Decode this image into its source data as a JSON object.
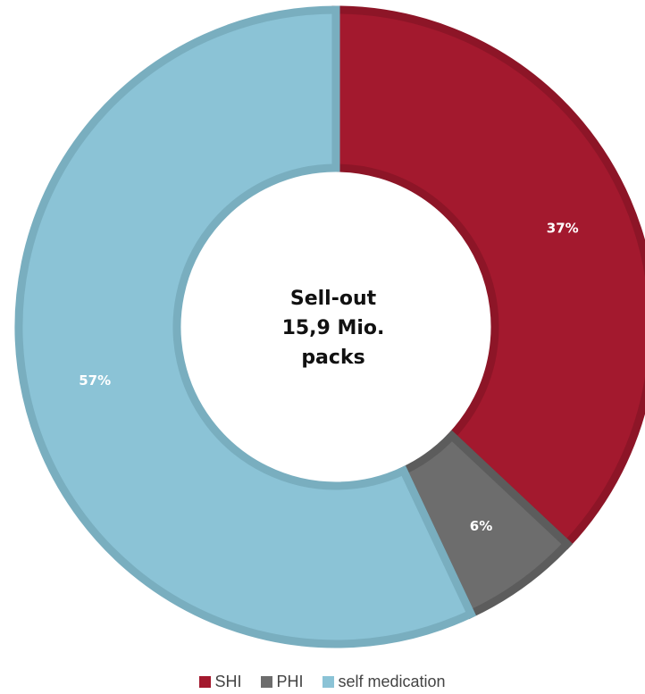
{
  "chart_data": {
    "type": "pie",
    "style": "donut",
    "center_label": [
      "Sell-out",
      "15,9 Mio.",
      "packs"
    ],
    "categories": [
      "SHI",
      "PHI",
      "self medication"
    ],
    "values": [
      37,
      6,
      57
    ],
    "value_labels": [
      "37%",
      "6%",
      "57%"
    ],
    "colors": [
      "#a3192e",
      "#6d6d6d",
      "#8bc3d6"
    ],
    "border_colors": [
      "#8d1527",
      "#5c5c5c",
      "#79aebf"
    ],
    "legend_position": "bottom",
    "start_angle_deg": 0,
    "direction": "clockwise"
  }
}
